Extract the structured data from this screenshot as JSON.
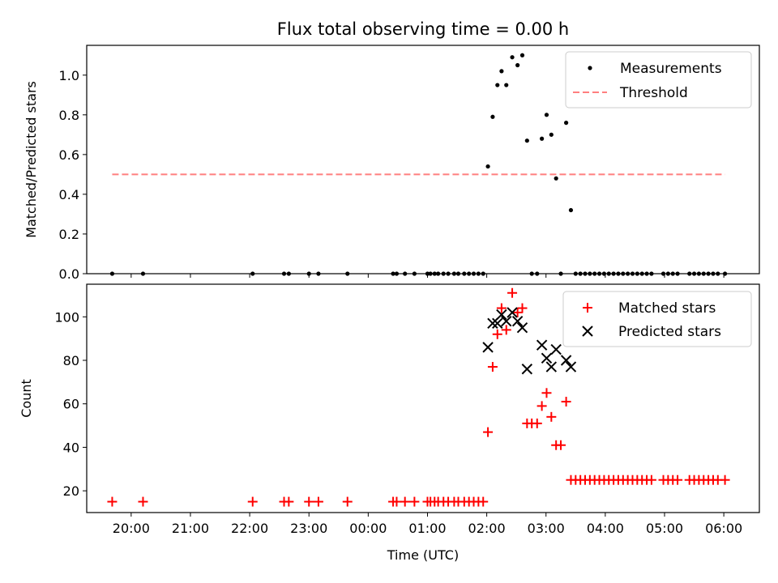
{
  "chart_data": [
    {
      "type": "scatter",
      "title": "Flux total observing time = 0.00 h",
      "xlabel": "",
      "ylabel": "Matched/Predicted stars",
      "xlim": [
        19.25,
        30.6
      ],
      "ylim": [
        0,
        1.15
      ],
      "yticks": [
        0.0,
        0.2,
        0.4,
        0.6,
        0.8,
        1.0
      ],
      "ytick_labels": [
        "0.0",
        "0.2",
        "0.4",
        "0.6",
        "0.8",
        "1.0"
      ],
      "legend": {
        "position": "top-right",
        "entries": [
          "Measurements",
          "Threshold"
        ]
      },
      "series": [
        {
          "name": "Measurements",
          "kind": "points",
          "color": "#000000",
          "x": [
            19.68,
            20.2,
            22.05,
            22.58,
            22.66,
            23.0,
            23.16,
            23.65,
            24.42,
            24.48,
            24.62,
            24.78,
            25.0,
            25.05,
            25.12,
            25.18,
            25.27,
            25.35,
            25.45,
            25.52,
            25.62,
            25.7,
            25.78,
            25.86,
            25.94,
            26.02,
            26.1,
            26.18,
            26.25,
            26.33,
            26.43,
            26.52,
            26.6,
            26.68,
            26.76,
            26.85,
            26.93,
            27.01,
            27.09,
            27.17,
            27.25,
            27.34,
            27.42,
            27.5,
            27.58,
            27.66,
            27.74,
            27.82,
            27.9,
            27.98,
            28.06,
            28.14,
            28.22,
            28.3,
            28.38,
            28.46,
            28.54,
            28.62,
            28.7,
            28.78,
            28.98,
            29.06,
            29.14,
            29.22,
            29.42,
            29.5,
            29.58,
            29.66,
            29.74,
            29.82,
            29.9,
            30.02
          ],
          "y": [
            0,
            0,
            0,
            0,
            0,
            0,
            0,
            0,
            0,
            0,
            0,
            0,
            0,
            0,
            0,
            0,
            0,
            0,
            0,
            0,
            0,
            0,
            0,
            0,
            0,
            0.54,
            0.79,
            0.95,
            1.02,
            0.95,
            1.09,
            1.05,
            1.1,
            0.67,
            0,
            0,
            0.68,
            0.8,
            0.7,
            0.48,
            0,
            0.76,
            0.32,
            0,
            0,
            0,
            0,
            0,
            0,
            0,
            0,
            0,
            0,
            0,
            0,
            0,
            0,
            0,
            0,
            0,
            0,
            0,
            0,
            0,
            0,
            0,
            0,
            0,
            0,
            0,
            0,
            0
          ]
        },
        {
          "name": "Threshold",
          "kind": "dashed-line",
          "color": "#ff7f7f",
          "x": [
            19.68,
            30.02
          ],
          "y": [
            0.5,
            0.5
          ]
        }
      ]
    },
    {
      "type": "scatter",
      "title": "",
      "xlabel": "Time (UTC)",
      "ylabel": "Count",
      "xlim": [
        19.25,
        30.6
      ],
      "ylim": [
        10,
        115
      ],
      "yticks": [
        20,
        40,
        60,
        80,
        100
      ],
      "ytick_labels": [
        "20",
        "40",
        "60",
        "80",
        "100"
      ],
      "xticks": [
        20,
        21,
        22,
        23,
        24,
        25,
        26,
        27,
        28,
        29,
        30
      ],
      "xtick_labels": [
        "20:00",
        "21:00",
        "22:00",
        "23:00",
        "00:00",
        "01:00",
        "02:00",
        "03:00",
        "04:00",
        "05:00",
        "06:00"
      ],
      "legend": {
        "position": "top-right",
        "entries": [
          "Matched stars",
          "Predicted stars"
        ]
      },
      "series": [
        {
          "name": "Matched stars",
          "kind": "plus",
          "color": "#ff0000",
          "x": [
            19.68,
            20.2,
            22.05,
            22.58,
            22.66,
            23.0,
            23.16,
            23.65,
            24.42,
            24.48,
            24.62,
            24.78,
            25.0,
            25.05,
            25.12,
            25.18,
            25.27,
            25.35,
            25.45,
            25.52,
            25.62,
            25.7,
            25.78,
            25.86,
            25.94,
            26.02,
            26.1,
            26.18,
            26.25,
            26.33,
            26.43,
            26.52,
            26.6,
            26.68,
            26.76,
            26.85,
            26.93,
            27.01,
            27.09,
            27.17,
            27.25,
            27.34,
            27.42,
            27.5,
            27.58,
            27.66,
            27.74,
            27.82,
            27.9,
            27.98,
            28.06,
            28.14,
            28.22,
            28.3,
            28.38,
            28.46,
            28.54,
            28.62,
            28.7,
            28.78,
            28.98,
            29.06,
            29.14,
            29.22,
            29.42,
            29.5,
            29.58,
            29.66,
            29.74,
            29.82,
            29.9,
            30.02
          ],
          "y": [
            15,
            15,
            15,
            15,
            15,
            15,
            15,
            15,
            15,
            15,
            15,
            15,
            15,
            15,
            15,
            15,
            15,
            15,
            15,
            15,
            15,
            15,
            15,
            15,
            15,
            47,
            77,
            92,
            104,
            94,
            111,
            102,
            104,
            51,
            51,
            51,
            59,
            65,
            54,
            41,
            41,
            61,
            25,
            25,
            25,
            25,
            25,
            25,
            25,
            25,
            25,
            25,
            25,
            25,
            25,
            25,
            25,
            25,
            25,
            25,
            25,
            25,
            25,
            25,
            25,
            25,
            25,
            25,
            25,
            25,
            25,
            25
          ]
        },
        {
          "name": "Predicted stars",
          "kind": "x",
          "color": "#000000",
          "x": [
            26.02,
            26.1,
            26.18,
            26.25,
            26.33,
            26.43,
            26.52,
            26.6,
            26.68,
            26.93,
            27.01,
            27.09,
            27.17,
            27.34,
            27.42
          ],
          "y": [
            86,
            97,
            97,
            101,
            98,
            102,
            98,
            95,
            76,
            87,
            81,
            77,
            85,
            80,
            77
          ]
        }
      ]
    }
  ]
}
